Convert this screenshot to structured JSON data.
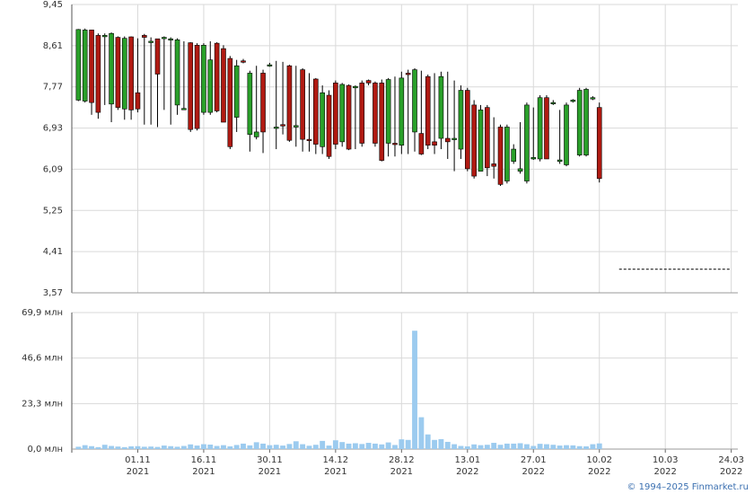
{
  "chart_data": [
    {
      "type": "candlestick",
      "open": [
        7.5,
        7.48,
        8.93,
        8.82,
        8.8,
        7.42,
        8.78,
        7.32,
        8.79,
        7.65,
        8.82,
        8.7,
        8.75,
        8.77,
        8.75,
        7.4,
        7.33,
        8.67,
        8.62,
        7.25,
        7.25,
        8.66,
        8.55,
        8.35,
        7.15,
        8.3,
        6.8,
        6.75,
        8.05,
        8.22,
        6.95,
        7.0,
        8.2,
        6.95,
        8.12,
        6.7,
        7.93,
        6.55,
        7.6,
        7.85,
        6.65,
        7.8,
        7.75,
        7.85,
        7.9,
        7.85,
        7.85,
        6.62,
        6.62,
        6.58,
        8.05,
        6.85,
        6.82,
        7.98,
        6.65,
        6.72,
        6.72,
        6.7,
        6.5,
        7.7,
        7.4,
        6.05,
        7.35,
        6.2,
        6.95,
        5.85,
        6.25,
        6.05,
        5.85,
        6.3,
        6.3,
        7.55,
        7.45,
        6.25,
        6.18,
        7.48,
        6.38,
        6.38,
        7.55,
        7.35
      ],
      "high": [
        8.95,
        8.96,
        8.93,
        8.86,
        8.86,
        8.88,
        8.8,
        8.8,
        8.8,
        8.76,
        8.85,
        8.78,
        8.75,
        8.8,
        8.78,
        8.76,
        8.7,
        8.68,
        8.66,
        8.66,
        8.7,
        8.68,
        8.62,
        8.4,
        8.32,
        8.34,
        8.1,
        8.2,
        8.12,
        8.26,
        8.3,
        8.28,
        8.22,
        8.2,
        8.15,
        8.05,
        7.95,
        7.8,
        7.7,
        7.9,
        7.85,
        7.82,
        7.8,
        7.9,
        7.92,
        7.88,
        7.92,
        7.95,
        7.98,
        8.08,
        8.12,
        8.15,
        8.1,
        8.02,
        8.05,
        8.08,
        8.08,
        7.9,
        7.8,
        7.75,
        7.5,
        7.4,
        7.4,
        7.15,
        7.0,
        7.0,
        6.6,
        7.05,
        7.45,
        7.35,
        7.6,
        7.6,
        7.5,
        7.3,
        7.45,
        7.52,
        7.75,
        7.75,
        7.58,
        7.45
      ],
      "low": [
        7.48,
        7.45,
        7.2,
        7.12,
        7.4,
        7.05,
        7.3,
        7.1,
        7.1,
        7.25,
        7.0,
        7.0,
        6.95,
        7.3,
        7.0,
        7.2,
        7.3,
        6.85,
        6.88,
        7.2,
        7.2,
        7.25,
        7.05,
        6.5,
        6.85,
        8.25,
        6.45,
        6.7,
        6.42,
        8.18,
        6.5,
        6.8,
        6.65,
        6.55,
        6.45,
        6.45,
        6.4,
        6.4,
        6.3,
        6.5,
        6.55,
        6.48,
        6.5,
        6.55,
        7.8,
        6.55,
        6.25,
        6.35,
        6.35,
        6.4,
        6.4,
        6.45,
        6.38,
        6.5,
        6.4,
        6.5,
        6.3,
        6.05,
        6.3,
        6.05,
        5.9,
        6.05,
        5.95,
        5.9,
        5.75,
        5.8,
        6.2,
        6.0,
        5.8,
        6.28,
        6.25,
        6.3,
        7.4,
        6.2,
        6.15,
        7.45,
        6.35,
        6.35,
        7.5,
        5.82
      ],
      "close": [
        8.94,
        8.93,
        7.45,
        7.25,
        8.82,
        8.86,
        7.35,
        8.76,
        7.3,
        7.32,
        8.78,
        8.7,
        8.03,
        8.78,
        8.75,
        8.73,
        7.33,
        6.9,
        6.92,
        8.62,
        8.32,
        7.28,
        7.05,
        6.55,
        8.2,
        8.28,
        8.05,
        6.85,
        6.85,
        8.22,
        6.95,
        6.98,
        6.68,
        6.98,
        6.7,
        6.68,
        6.6,
        7.65,
        6.35,
        6.6,
        7.82,
        6.5,
        7.78,
        6.62,
        7.85,
        6.62,
        6.27,
        7.92,
        6.6,
        7.95,
        8.02,
        8.12,
        6.4,
        6.58,
        6.58,
        7.98,
        6.65,
        6.72,
        7.7,
        6.1,
        5.95,
        7.3,
        6.12,
        6.15,
        5.78,
        6.95,
        6.5,
        6.1,
        7.4,
        6.33,
        7.55,
        6.3,
        7.45,
        6.28,
        7.4,
        7.5,
        7.7,
        7.72,
        7.55,
        5.9
      ],
      "up_color": "#2aa02a",
      "down_color": "#b01a12",
      "reference_line": {
        "value": 4.05,
        "x": [
          82,
          99
        ]
      },
      "xlim": [
        -1,
        100
      ],
      "xticks": [
        9,
        19,
        29,
        39,
        49,
        59,
        69,
        79,
        89,
        99
      ],
      "ylim": [
        3.57,
        9.45
      ],
      "yticks": [
        {
          "value": 3.57,
          "label": "3,57"
        },
        {
          "value": 4.41,
          "label": "4,41"
        },
        {
          "value": 5.25,
          "label": "5,25"
        },
        {
          "value": 6.09,
          "label": "6,09"
        },
        {
          "value": 6.93,
          "label": "6,93"
        },
        {
          "value": 7.77,
          "label": "7,77"
        },
        {
          "value": 8.61,
          "label": "8,61"
        },
        {
          "value": 9.45,
          "label": "9,45"
        }
      ],
      "grid": true
    },
    {
      "type": "bar",
      "values": [
        1.2,
        2.0,
        1.5,
        1.0,
        2.2,
        1.6,
        1.3,
        1.0,
        1.4,
        1.5,
        1.2,
        1.3,
        1.1,
        1.8,
        1.5,
        1.2,
        1.6,
        2.4,
        1.8,
        2.5,
        2.3,
        1.6,
        2.0,
        1.4,
        2.1,
        2.8,
        1.9,
        3.5,
        2.8,
        2.0,
        2.2,
        1.8,
        2.6,
        4.0,
        2.5,
        1.7,
        2.2,
        4.2,
        1.8,
        4.5,
        3.6,
        2.8,
        3.0,
        2.6,
        3.2,
        2.8,
        2.4,
        3.4,
        2.1,
        5.0,
        4.7,
        60.6,
        16.3,
        7.5,
        4.7,
        5.1,
        3.7,
        2.5,
        1.6,
        1.4,
        2.4,
        2.0,
        2.2,
        3.2,
        2.2,
        2.8,
        2.8,
        3.0,
        2.5,
        1.6,
        2.7,
        2.5,
        2.2,
        1.8,
        2.0,
        1.9,
        1.5,
        1.4,
        2.5,
        2.9
      ],
      "color": "#9ccbef",
      "xlim": [
        -1,
        100
      ],
      "xticks": [
        {
          "value": 9,
          "label": "01.11",
          "year": "2021"
        },
        {
          "value": 19,
          "label": "16.11",
          "year": "2021"
        },
        {
          "value": 29,
          "label": "30.11",
          "year": "2021"
        },
        {
          "value": 39,
          "label": "14.12",
          "year": "2021"
        },
        {
          "value": 49,
          "label": "28.12",
          "year": "2021"
        },
        {
          "value": 59,
          "label": "13.01",
          "year": "2022"
        },
        {
          "value": 69,
          "label": "27.01",
          "year": "2022"
        },
        {
          "value": 79,
          "label": "10.02",
          "year": "2022"
        },
        {
          "value": 89,
          "label": "10.03",
          "year": "2022"
        },
        {
          "value": 99,
          "label": "24.03",
          "year": "2022"
        }
      ],
      "ylim": [
        0,
        69.9
      ],
      "yticks": [
        {
          "value": 0,
          "label": "0,0 млн"
        },
        {
          "value": 23.3,
          "label": "23,3 млн"
        },
        {
          "value": 46.6,
          "label": "46,6 млн"
        },
        {
          "value": 69.9,
          "label": "69,9 млн"
        }
      ],
      "grid": true
    }
  ],
  "footer": "© 1994–2025 Finmarket.ru"
}
